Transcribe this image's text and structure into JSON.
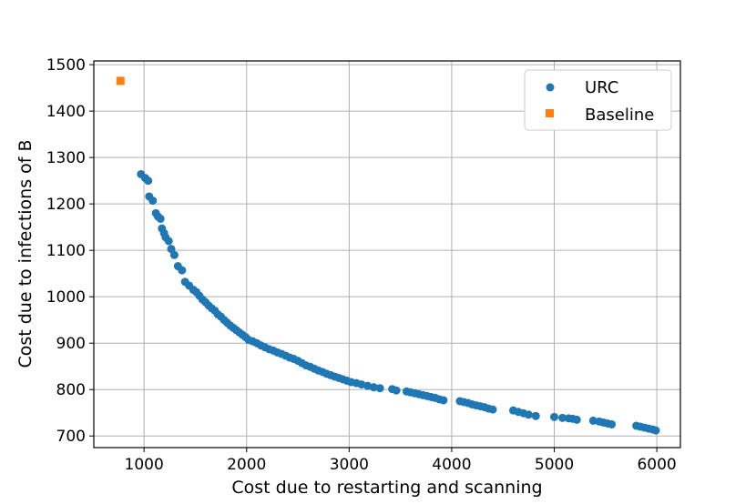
{
  "chart_data": {
    "type": "scatter",
    "title": "",
    "xlabel": "Cost due to restarting and scanning",
    "ylabel": "Cost due to infections of B",
    "xlim": [
      510,
      6230
    ],
    "ylim": [
      675,
      1508
    ],
    "xticks": [
      1000,
      2000,
      3000,
      4000,
      5000,
      6000
    ],
    "yticks": [
      700,
      800,
      900,
      1000,
      1100,
      1200,
      1300,
      1400,
      1500
    ],
    "grid": true,
    "legend_position": "top-right",
    "series": [
      {
        "name": "URC",
        "marker": "circle",
        "color": "#1f77b4",
        "points": [
          [
            970,
            1264
          ],
          [
            1010,
            1256
          ],
          [
            1040,
            1250
          ],
          [
            1050,
            1216
          ],
          [
            1085,
            1207
          ],
          [
            1115,
            1180
          ],
          [
            1135,
            1173
          ],
          [
            1160,
            1168
          ],
          [
            1175,
            1147
          ],
          [
            1195,
            1137
          ],
          [
            1210,
            1128
          ],
          [
            1240,
            1120
          ],
          [
            1265,
            1103
          ],
          [
            1295,
            1090
          ],
          [
            1330,
            1066
          ],
          [
            1370,
            1057
          ],
          [
            1400,
            1032
          ],
          [
            1440,
            1024
          ],
          [
            1480,
            1015
          ],
          [
            1510,
            1010
          ],
          [
            1540,
            1002
          ],
          [
            1570,
            994
          ],
          [
            1600,
            988
          ],
          [
            1630,
            981
          ],
          [
            1660,
            975
          ],
          [
            1690,
            970
          ],
          [
            1720,
            962
          ],
          [
            1750,
            957
          ],
          [
            1780,
            950
          ],
          [
            1810,
            944
          ],
          [
            1840,
            938
          ],
          [
            1870,
            933
          ],
          [
            1900,
            928
          ],
          [
            1930,
            923
          ],
          [
            1960,
            918
          ],
          [
            1990,
            913
          ],
          [
            2020,
            907
          ],
          [
            2060,
            904
          ],
          [
            2100,
            900
          ],
          [
            2140,
            895
          ],
          [
            2180,
            891
          ],
          [
            2220,
            887
          ],
          [
            2260,
            884
          ],
          [
            2300,
            880
          ],
          [
            2340,
            877
          ],
          [
            2380,
            873
          ],
          [
            2420,
            869
          ],
          [
            2460,
            866
          ],
          [
            2500,
            862
          ],
          [
            2540,
            857
          ],
          [
            2580,
            852
          ],
          [
            2620,
            849
          ],
          [
            2660,
            845
          ],
          [
            2700,
            841
          ],
          [
            2740,
            838
          ],
          [
            2780,
            834
          ],
          [
            2820,
            831
          ],
          [
            2860,
            828
          ],
          [
            2900,
            825
          ],
          [
            2940,
            822
          ],
          [
            2980,
            819
          ],
          [
            3020,
            816
          ],
          [
            3070,
            814
          ],
          [
            3120,
            811
          ],
          [
            3180,
            808
          ],
          [
            3240,
            805
          ],
          [
            3300,
            803
          ],
          [
            3420,
            801
          ],
          [
            3460,
            798
          ],
          [
            3560,
            796
          ],
          [
            3600,
            794
          ],
          [
            3640,
            792
          ],
          [
            3680,
            790
          ],
          [
            3720,
            788
          ],
          [
            3760,
            786
          ],
          [
            3800,
            784
          ],
          [
            3840,
            782
          ],
          [
            3880,
            779
          ],
          [
            3920,
            777
          ],
          [
            4080,
            775
          ],
          [
            4120,
            773
          ],
          [
            4160,
            771
          ],
          [
            4200,
            768
          ],
          [
            4240,
            766
          ],
          [
            4280,
            764
          ],
          [
            4320,
            762
          ],
          [
            4360,
            759
          ],
          [
            4400,
            757
          ],
          [
            4600,
            755
          ],
          [
            4650,
            752
          ],
          [
            4700,
            749
          ],
          [
            4750,
            746
          ],
          [
            4820,
            743
          ],
          [
            5000,
            741
          ],
          [
            5080,
            739
          ],
          [
            5140,
            738
          ],
          [
            5180,
            737
          ],
          [
            5220,
            735
          ],
          [
            5380,
            733
          ],
          [
            5440,
            731
          ],
          [
            5480,
            729
          ],
          [
            5520,
            727
          ],
          [
            5560,
            725
          ],
          [
            5800,
            722
          ],
          [
            5840,
            720
          ],
          [
            5880,
            718
          ],
          [
            5920,
            716
          ],
          [
            5960,
            714
          ],
          [
            5990,
            712
          ]
        ]
      },
      {
        "name": "Baseline",
        "marker": "square",
        "color": "#ff7f0e",
        "points": [
          [
            770,
            1465
          ]
        ]
      }
    ]
  }
}
